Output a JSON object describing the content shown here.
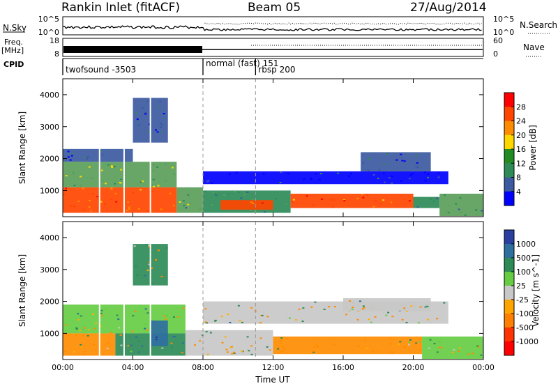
{
  "header": {
    "station": "Rankin Inlet (fitACF)",
    "beam": "Beam 05",
    "date": "27/Aug/2014"
  },
  "top_panels": {
    "nsky_label": "N.Sky",
    "nsky_ticks": [
      "10^5",
      "10^0"
    ],
    "nsearch_label": "N.Search",
    "nsearch_ticks": [
      "10^5",
      "10^0"
    ],
    "freq_label_1": "Freq.",
    "freq_label_2": "[MHz]",
    "freq_ticks": [
      "18",
      "8"
    ],
    "nave_label": "Nave",
    "nave_ticks": [
      "60",
      "0"
    ],
    "cpid_label": "CPID"
  },
  "cpid_segments": [
    {
      "label": "twofsound -3503",
      "start_hour": 0
    },
    {
      "label": "normal (fast) 151",
      "start_hour": 8
    },
    {
      "label": "rbsp 200",
      "start_hour": 11
    }
  ],
  "power_colorbar": {
    "label": "Power [dB]",
    "ticks": [
      "28",
      "24",
      "20",
      "16",
      "12",
      "8",
      "4"
    ],
    "colors": [
      "#ff0000",
      "#ff4500",
      "#ff8c00",
      "#ffd700",
      "#228b22",
      "#2e8b57",
      "#3c5aa0",
      "#0000ff"
    ]
  },
  "velocity_colorbar": {
    "label": "Velocity [m s^-1]",
    "ticks": [
      "1000",
      "500",
      "100",
      "25",
      "-25",
      "-100",
      "-500",
      "-1000"
    ],
    "colors": [
      "#2a3f9f",
      "#2f6fa0",
      "#2e8b57",
      "#66cc44",
      "#c8c8c8",
      "#ffa500",
      "#ff7f00",
      "#ff3300",
      "#ff0000"
    ]
  },
  "chart_data": [
    {
      "type": "heatmap",
      "title": "Power",
      "xlabel": "",
      "ylabel": "Slant Range [km]",
      "x_ticks": [
        "00:00",
        "04:00",
        "08:00",
        "12:00",
        "16:00",
        "20:00",
        "00:00"
      ],
      "y_ticks": [
        "1000",
        "2000",
        "3000",
        "4000"
      ],
      "xlim_hours": [
        0,
        24
      ],
      "ylim_km": [
        180,
        4500
      ],
      "value_unit": "dB",
      "value_range": [
        0,
        32
      ],
      "regions": [
        {
          "t0": 0,
          "t1": 6.5,
          "r0": 300,
          "r1": 1100,
          "value": 26
        },
        {
          "t0": 0,
          "t1": 6.5,
          "r0": 1100,
          "r1": 1900,
          "value": 16
        },
        {
          "t0": 0,
          "t1": 4,
          "r0": 1900,
          "r1": 2300,
          "value": 8
        },
        {
          "t0": 6.5,
          "t1": 8,
          "r0": 300,
          "r1": 1100,
          "value": 14
        },
        {
          "t0": 8,
          "t1": 13,
          "r0": 300,
          "r1": 1000,
          "value": 12
        },
        {
          "t0": 9,
          "t1": 12,
          "r0": 400,
          "r1": 700,
          "value": 26
        },
        {
          "t0": 13,
          "t1": 20,
          "r0": 450,
          "r1": 900,
          "value": 27
        },
        {
          "t0": 20,
          "t1": 21.5,
          "r0": 450,
          "r1": 800,
          "value": 12
        },
        {
          "t0": 8,
          "t1": 22,
          "r0": 1200,
          "r1": 1600,
          "value": 5
        },
        {
          "t0": 17,
          "t1": 21,
          "r0": 1600,
          "r1": 2200,
          "value": 6
        },
        {
          "t0": 21.5,
          "t1": 24,
          "r0": 200,
          "r1": 900,
          "value": 14
        },
        {
          "t0": 4,
          "t1": 6,
          "r0": 2500,
          "r1": 3900,
          "value": 6
        }
      ]
    },
    {
      "type": "heatmap",
      "title": "Velocity",
      "xlabel": "Time UT",
      "ylabel": "Slant Range [km]",
      "x_ticks": [
        "00:00",
        "04:00",
        "08:00",
        "12:00",
        "16:00",
        "20:00",
        "00:00"
      ],
      "y_ticks": [
        "1000",
        "2000",
        "3000",
        "4000"
      ],
      "xlim_hours": [
        0,
        24
      ],
      "ylim_km": [
        180,
        4500
      ],
      "value_unit": "m s^-1",
      "value_range": [
        -1000,
        1000
      ],
      "regions": [
        {
          "t0": 0,
          "t1": 3,
          "r0": 300,
          "r1": 1000,
          "value": -150
        },
        {
          "t0": 0,
          "t1": 7,
          "r0": 1000,
          "r1": 1900,
          "value": 50
        },
        {
          "t0": 3,
          "t1": 7,
          "r0": 300,
          "r1": 1000,
          "value": 150
        },
        {
          "t0": 5,
          "t1": 6,
          "r0": 600,
          "r1": 1400,
          "value": 600
        },
        {
          "t0": 7,
          "t1": 12,
          "r0": 300,
          "r1": 1100,
          "value": 0
        },
        {
          "t0": 12,
          "t1": 20.5,
          "r0": 350,
          "r1": 900,
          "value": -150
        },
        {
          "t0": 20.5,
          "t1": 24,
          "r0": 200,
          "r1": 900,
          "value": 40
        },
        {
          "t0": 8,
          "t1": 22,
          "r0": 1300,
          "r1": 2000,
          "value": 0
        },
        {
          "t0": 16,
          "t1": 21,
          "r0": 1700,
          "r1": 2100,
          "value": 5
        },
        {
          "t0": 4,
          "t1": 6,
          "r0": 2500,
          "r1": 3800,
          "value": 80
        }
      ]
    }
  ]
}
